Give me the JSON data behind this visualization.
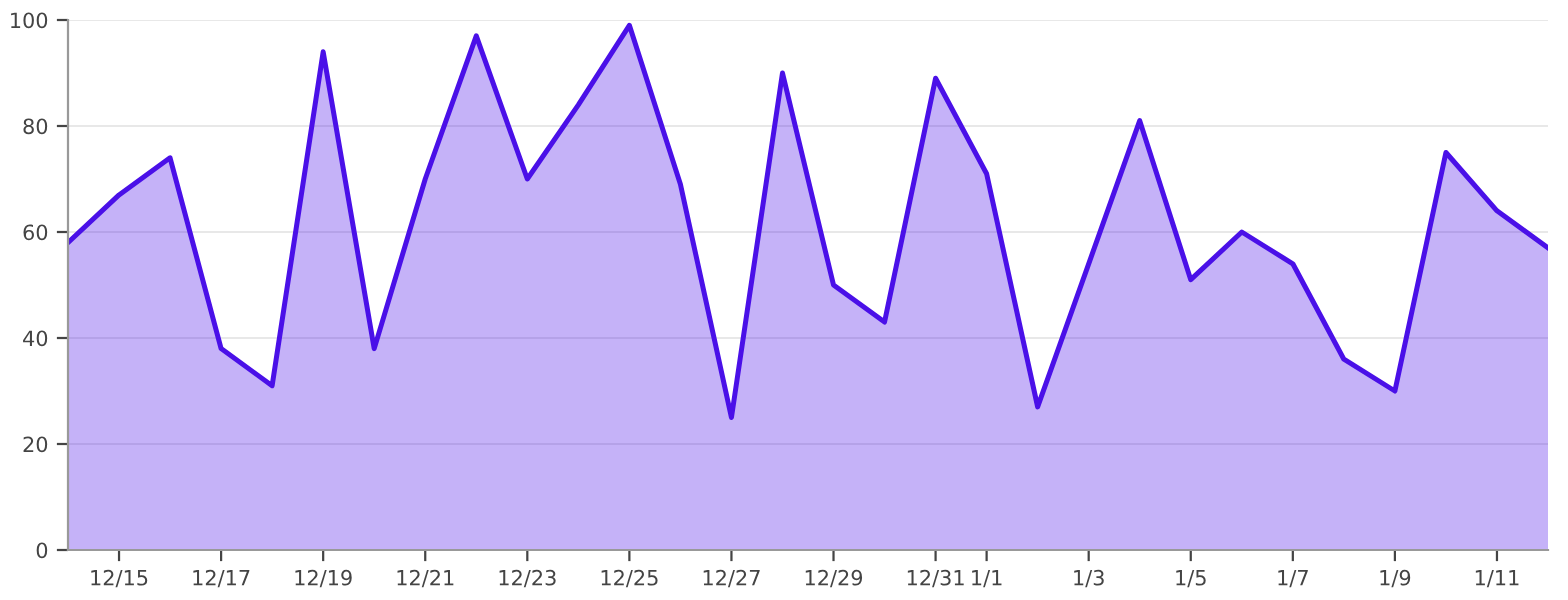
{
  "chart_data": {
    "type": "area",
    "categories": [
      null,
      "12/15",
      null,
      "12/17",
      null,
      "12/19",
      null,
      "12/21",
      null,
      "12/23",
      null,
      "12/25",
      null,
      "12/27",
      null,
      "12/29",
      null,
      "12/31",
      "1/1",
      null,
      "1/3",
      null,
      "1/5",
      null,
      "1/7",
      null,
      "1/9",
      null,
      "1/11",
      null
    ],
    "series": [
      {
        "color": "#4a10e8",
        "values": [
          58,
          67,
          74,
          38,
          31,
          94,
          38,
          70,
          97,
          70,
          84,
          99,
          69,
          25,
          90,
          50,
          43,
          89,
          71,
          27,
          54,
          81,
          51,
          60,
          54,
          36,
          30,
          75,
          64,
          57
        ]
      }
    ],
    "ylim": [
      0,
      100
    ],
    "yticks": [
      0,
      20,
      40,
      60,
      80,
      100
    ],
    "grid": "y",
    "legend": false
  }
}
